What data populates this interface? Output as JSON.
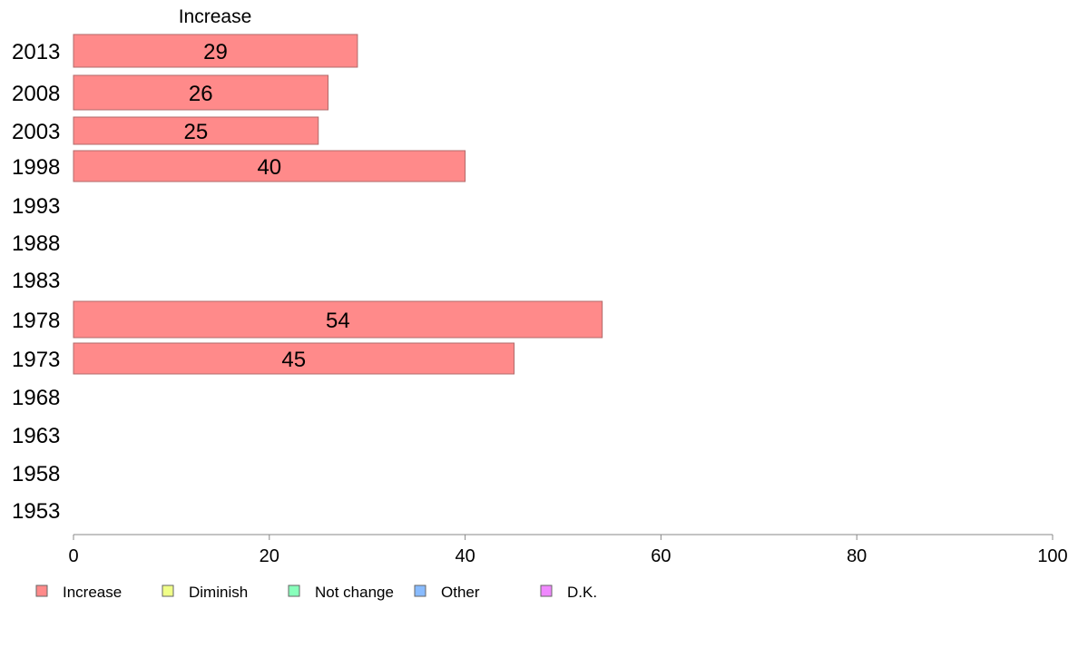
{
  "chart_data": {
    "type": "bar",
    "orientation": "horizontal",
    "panel_title": "Increase",
    "categories": [
      "2013",
      "2008",
      "2003",
      "1998",
      "1993",
      "1988",
      "1983",
      "1978",
      "1973",
      "1968",
      "1963",
      "1958",
      "1953"
    ],
    "series": [
      {
        "name": "Increase",
        "values": [
          29,
          26,
          25,
          40,
          null,
          null,
          null,
          54,
          45,
          null,
          null,
          null,
          null
        ]
      }
    ],
    "xlim": [
      0,
      100
    ],
    "xticks": [
      "0",
      "20",
      "40",
      "60",
      "80",
      "100"
    ],
    "grid": false,
    "legend": {
      "placement": "bottom-left",
      "items": [
        {
          "label": "Increase",
          "color": "#ff8a8a"
        },
        {
          "label": "Diminish",
          "color": "#f0ff88"
        },
        {
          "label": "Not change",
          "color": "#88ffbb"
        },
        {
          "label": "Other",
          "color": "#88bbff"
        },
        {
          "label": "D.K.",
          "color": "#f088ff"
        }
      ]
    },
    "bar_color": "#ff8a8a",
    "bar_border": "#b06a6a",
    "axis_color": "#888888"
  }
}
